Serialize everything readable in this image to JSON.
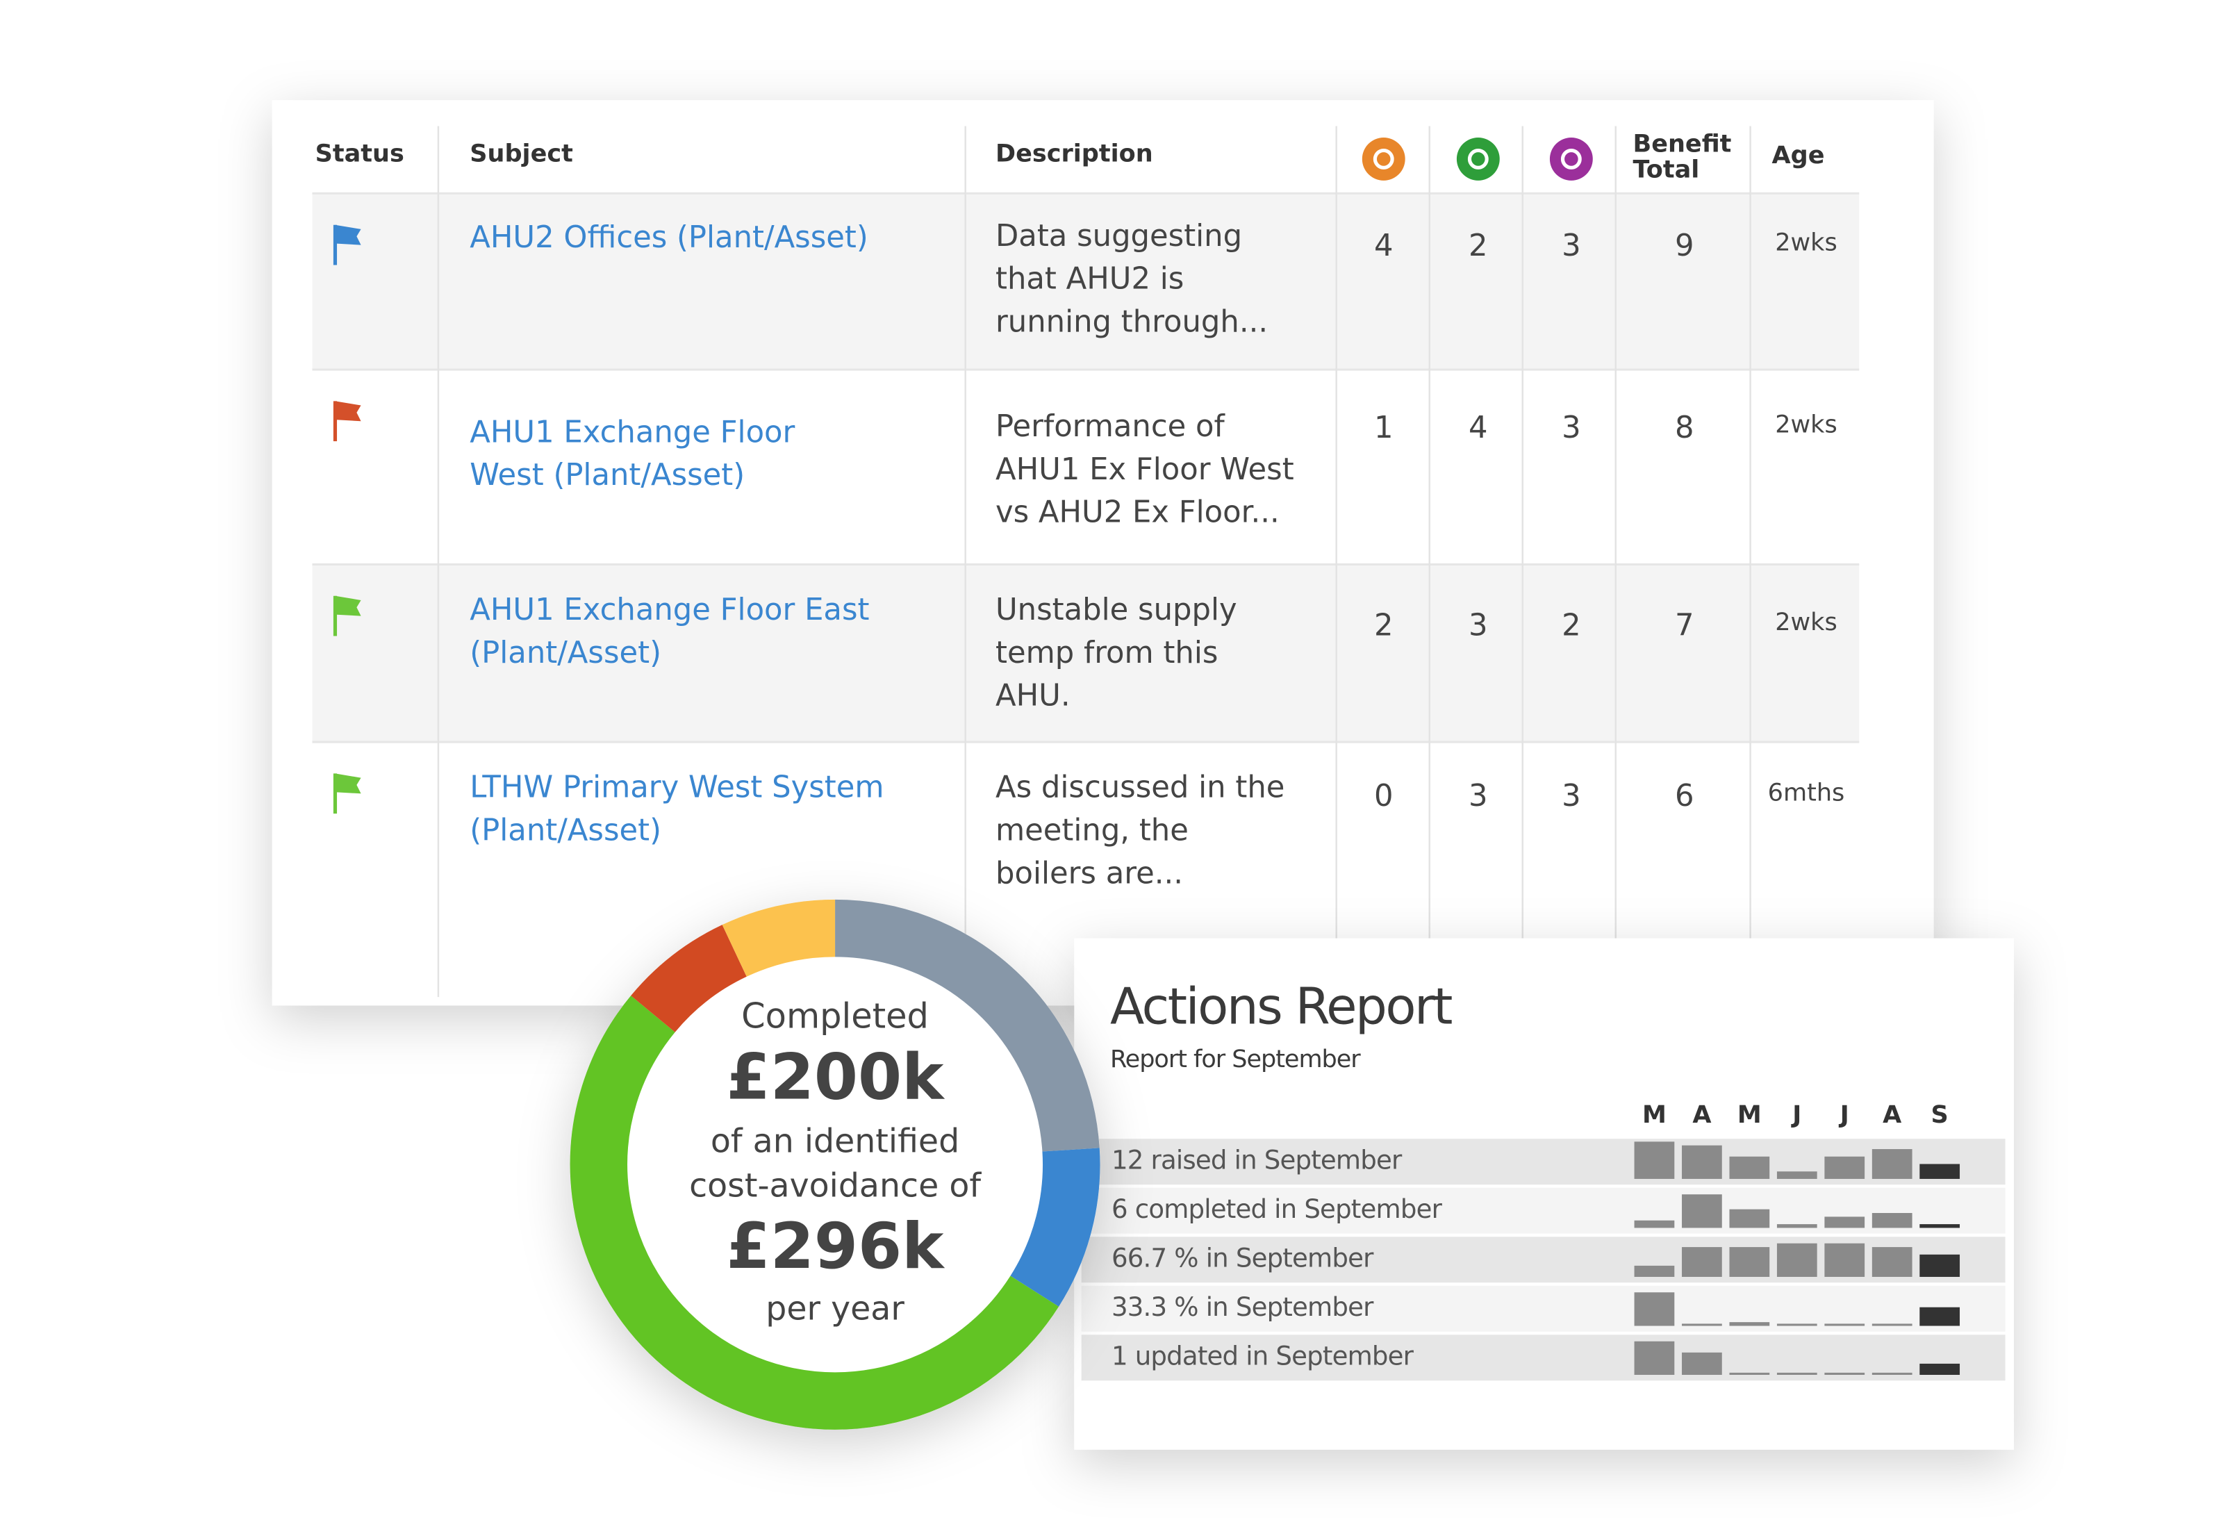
{
  "table": {
    "headers": {
      "status": "Status",
      "subject": "Subject",
      "description": "Description",
      "benefit_total": [
        "Benefit",
        "Total"
      ],
      "age": "Age"
    },
    "score_icon_colors": [
      "#e8862a",
      "#2e9e3a",
      "#9b2f9b"
    ],
    "rows": [
      {
        "flag_color": "#3a86d0",
        "subject": [
          "AHU2 Offices (Plant/Asset)"
        ],
        "description": [
          "Data suggesting",
          "that AHU2 is",
          "running through..."
        ],
        "scores": [
          4,
          2,
          3
        ],
        "benefit_total": 9,
        "age": "2wks"
      },
      {
        "flag_color": "#d4502a",
        "subject": [
          "AHU1 Exchange Floor",
          "West (Plant/Asset)"
        ],
        "description": [
          "Performance of",
          "AHU1 Ex Floor West",
          "vs AHU2 Ex Floor..."
        ],
        "scores": [
          1,
          4,
          3
        ],
        "benefit_total": 8,
        "age": "2wks"
      },
      {
        "flag_color": "#6cc73a",
        "subject": [
          "AHU1 Exchange Floor East",
          "(Plant/Asset)"
        ],
        "description": [
          "Unstable supply",
          "temp from this",
          "AHU."
        ],
        "scores": [
          2,
          3,
          2
        ],
        "benefit_total": 7,
        "age": "2wks"
      },
      {
        "flag_color": "#6cc73a",
        "subject": [
          "LTHW Primary West System",
          "(Plant/Asset)"
        ],
        "description": [
          "As discussed in the",
          "meeting, the",
          "boilers are..."
        ],
        "scores": [
          0,
          3,
          3
        ],
        "benefit_total": 6,
        "age": "6mths"
      }
    ]
  },
  "donut": {
    "segments": [
      {
        "color": "#8797a8",
        "value": 24
      },
      {
        "color": "#3a86d0",
        "value": 10
      },
      {
        "color": "#62c424",
        "value": 52
      },
      {
        "color": "#d24a22",
        "value": 7
      },
      {
        "color": "#fcc24e",
        "value": 7
      }
    ],
    "lines": [
      "Completed",
      "£200k",
      "of an identified",
      "cost-avoidance of",
      "£296k",
      "per year"
    ]
  },
  "report": {
    "title": "Actions Report",
    "subtitle": "Report for September",
    "months": [
      "M",
      "A",
      "M",
      "J",
      "J",
      "A",
      "S"
    ],
    "bar_color": "#8a8a8a",
    "current_color": "#333333",
    "rows": [
      {
        "label": "12 raised in September",
        "values": [
          10,
          9,
          6,
          2,
          6,
          8,
          4
        ]
      },
      {
        "label": "6 completed in September",
        "values": [
          2,
          9,
          5,
          1,
          3,
          4,
          1
        ]
      },
      {
        "label": "66.7 % in September",
        "values": [
          3,
          8,
          8,
          9,
          9,
          8,
          6
        ]
      },
      {
        "label": "33.3 % in September",
        "values": [
          9,
          0,
          1,
          0,
          0,
          0,
          5
        ]
      },
      {
        "label": "1 updated in September",
        "values": [
          9,
          6,
          0,
          0,
          0,
          0,
          3
        ]
      }
    ]
  }
}
